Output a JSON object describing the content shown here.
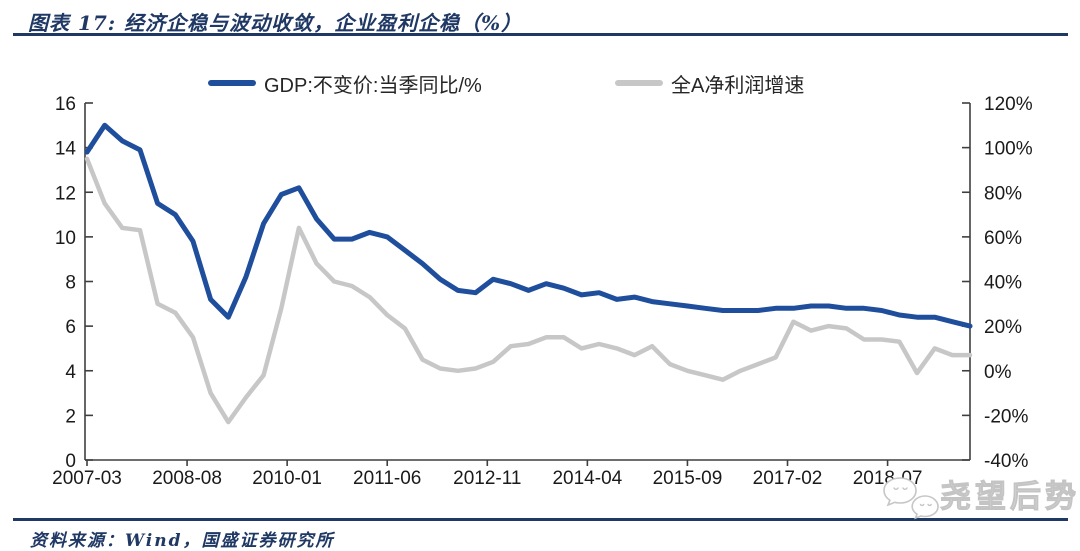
{
  "title": "图表 17: 经济企稳与波动收敛，企业盈利企稳（%）",
  "source_note": "资料来源：Wind，国盛证券研究所",
  "watermark": {
    "text": "尧望后势",
    "icon": "wechat-chat-bubbles-icon"
  },
  "colors": {
    "accent_navy": "#1F3864",
    "gdp_line": "#1F4E9C",
    "profit_line": "#C7C7C7",
    "axis_line": "#3F3F3F",
    "tick_text": "#1A1A1A"
  },
  "chart_data": {
    "type": "line",
    "title": "经济企稳与波动收敛，企业盈利企稳（%）",
    "grid": false,
    "legend_position": "top",
    "x": [
      "2007-03",
      "2007-06",
      "2007-09",
      "2007-12",
      "2008-03",
      "2008-06",
      "2008-09",
      "2008-12",
      "2009-03",
      "2009-06",
      "2009-09",
      "2009-12",
      "2010-03",
      "2010-06",
      "2010-09",
      "2010-12",
      "2011-03",
      "2011-06",
      "2011-09",
      "2011-12",
      "2012-03",
      "2012-06",
      "2012-09",
      "2012-12",
      "2013-03",
      "2013-06",
      "2013-09",
      "2013-12",
      "2014-03",
      "2014-06",
      "2014-09",
      "2014-12",
      "2015-03",
      "2015-06",
      "2015-09",
      "2015-12",
      "2016-03",
      "2016-06",
      "2016-09",
      "2016-12",
      "2017-03",
      "2017-06",
      "2017-09",
      "2017-12",
      "2018-03",
      "2018-06",
      "2018-09",
      "2018-12",
      "2019-03",
      "2019-06",
      "2019-09"
    ],
    "x_tick_labels": [
      "2007-03",
      "2008-08",
      "2010-01",
      "2011-06",
      "2012-11",
      "2014-04",
      "2015-09",
      "2017-02",
      "2018-07"
    ],
    "left_axis": {
      "min": 0,
      "max": 16,
      "ticks": [
        16,
        14,
        12,
        10,
        8,
        6,
        4,
        2,
        0
      ]
    },
    "right_axis": {
      "min": -40,
      "max": 120,
      "ticks": [
        120,
        100,
        80,
        60,
        40,
        20,
        0,
        -20,
        -40
      ],
      "unit": "%"
    },
    "series": [
      {
        "name": "GDP:不变价:当季同比/%",
        "axis": "left",
        "color": "#1F4E9C",
        "values": [
          13.8,
          15.0,
          14.3,
          13.9,
          11.5,
          11.0,
          9.8,
          7.2,
          6.4,
          8.2,
          10.6,
          11.9,
          12.2,
          10.8,
          9.9,
          9.9,
          10.2,
          10.0,
          9.4,
          8.8,
          8.1,
          7.6,
          7.5,
          8.1,
          7.9,
          7.6,
          7.9,
          7.7,
          7.4,
          7.5,
          7.2,
          7.3,
          7.1,
          7.0,
          6.9,
          6.8,
          6.7,
          6.7,
          6.7,
          6.8,
          6.8,
          6.9,
          6.9,
          6.8,
          6.8,
          6.7,
          6.5,
          6.4,
          6.4,
          6.2,
          6.0
        ]
      },
      {
        "name": "全A净利润增速",
        "axis": "right",
        "color": "#C7C7C7",
        "unit": "%",
        "values": [
          95,
          75,
          64,
          63,
          30,
          26,
          15,
          -10,
          -23,
          -12,
          -2,
          28,
          64,
          48,
          40,
          38,
          33,
          25,
          19,
          5,
          1,
          0,
          1,
          4,
          11,
          12,
          15,
          15,
          10,
          12,
          10,
          7,
          11,
          3,
          0,
          -2,
          -4,
          0,
          3,
          6,
          22,
          18,
          20,
          19,
          14,
          14,
          13,
          -1,
          10,
          7,
          7
        ]
      }
    ]
  }
}
